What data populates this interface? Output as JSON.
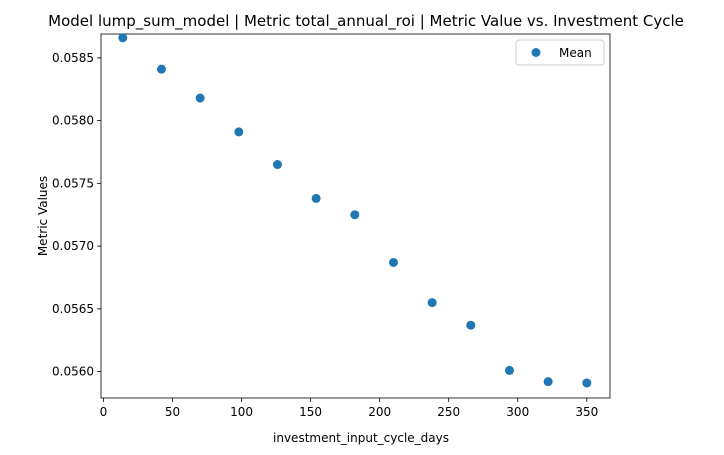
{
  "chart_data": {
    "type": "scatter",
    "title": "Model lump_sum_model | Metric total_annual_roi | Metric Value vs. Investment Cycle",
    "xlabel": "investment_input_cycle_days",
    "ylabel": "Metric Values",
    "xlim": [
      -1.8,
      366.8
    ],
    "ylim": [
      0.05579,
      0.05869
    ],
    "xticks": [
      0,
      50,
      100,
      150,
      200,
      250,
      300,
      350
    ],
    "xtick_labels": [
      "0",
      "50",
      "100",
      "150",
      "200",
      "250",
      "300",
      "350"
    ],
    "yticks": [
      0.056,
      0.0565,
      0.057,
      0.0575,
      0.058,
      0.0585
    ],
    "ytick_labels": [
      "0.0560",
      "0.0565",
      "0.0570",
      "0.0575",
      "0.0580",
      "0.0585"
    ],
    "grid": false,
    "legend_position": "top-right",
    "series": [
      {
        "name": "Mean",
        "color": "#1f77b4",
        "x": [
          14,
          42,
          70,
          98,
          126,
          154,
          182,
          210,
          238,
          266,
          294,
          322,
          350
        ],
        "y": [
          0.05866,
          0.05841,
          0.05818,
          0.05791,
          0.05765,
          0.05738,
          0.05725,
          0.05687,
          0.05655,
          0.05637,
          0.05601,
          0.05592,
          0.05591
        ]
      }
    ]
  }
}
